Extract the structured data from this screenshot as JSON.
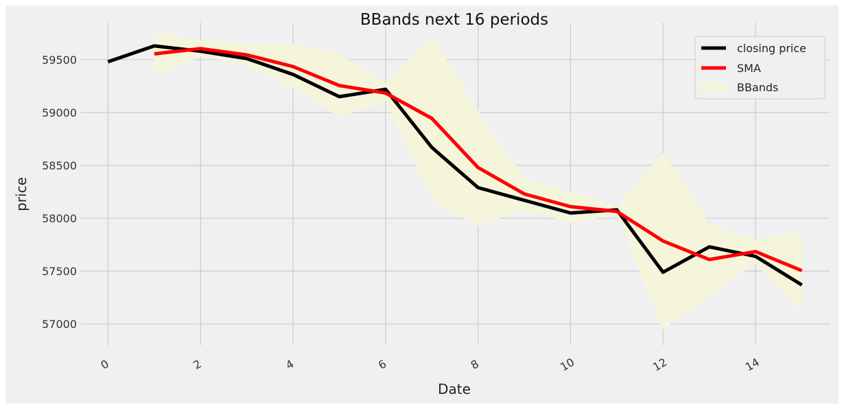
{
  "chart_data": {
    "type": "line",
    "title": "BBands next 16 periods",
    "xlabel": "Date",
    "ylabel": "price",
    "xlim": [
      -0.6,
      15.6
    ],
    "ylim": [
      56800,
      59850
    ],
    "xticks": [
      0,
      2,
      4,
      6,
      8,
      10,
      12,
      14
    ],
    "yticks": [
      57000,
      57500,
      58000,
      58500,
      59000,
      59500
    ],
    "grid": true,
    "legend_position": "top-right",
    "colors": {
      "background": "#f0f0f0",
      "grid": "#cbcbcb",
      "closing": "#000000",
      "sma": "#ff0000",
      "bands": "#f5f5dc"
    },
    "series": [
      {
        "name": "closing price",
        "x": [
          0,
          1,
          2,
          3,
          4,
          5,
          6,
          7,
          8,
          9,
          10,
          11,
          12,
          13,
          14,
          15
        ],
        "values": [
          59480,
          59630,
          59580,
          59510,
          59360,
          59150,
          59220,
          58670,
          58290,
          58170,
          58050,
          58080,
          57490,
          57730,
          57640,
          57370
        ]
      },
      {
        "name": "SMA",
        "x": [
          1,
          2,
          3,
          4,
          5,
          6,
          7,
          8,
          9,
          10,
          11,
          12,
          13,
          14,
          15
        ],
        "values": [
          59555,
          59605,
          59545,
          59435,
          59255,
          59185,
          58945,
          58480,
          58230,
          58110,
          58065,
          57785,
          57610,
          57685,
          57505
        ]
      }
    ],
    "bands": {
      "name": "BBands",
      "x": [
        1,
        2,
        3,
        4,
        5,
        6,
        7,
        8,
        9,
        10,
        11,
        12,
        13,
        14,
        15
      ],
      "upper": [
        59770,
        59680,
        59650,
        59650,
        59560,
        59280,
        59720,
        59020,
        58380,
        58250,
        58110,
        58620,
        57950,
        57800,
        57880
      ],
      "lower": [
        59340,
        59530,
        59450,
        59230,
        58960,
        59110,
        58170,
        57930,
        58080,
        57960,
        58030,
        56950,
        57270,
        57570,
        57110
      ]
    }
  }
}
